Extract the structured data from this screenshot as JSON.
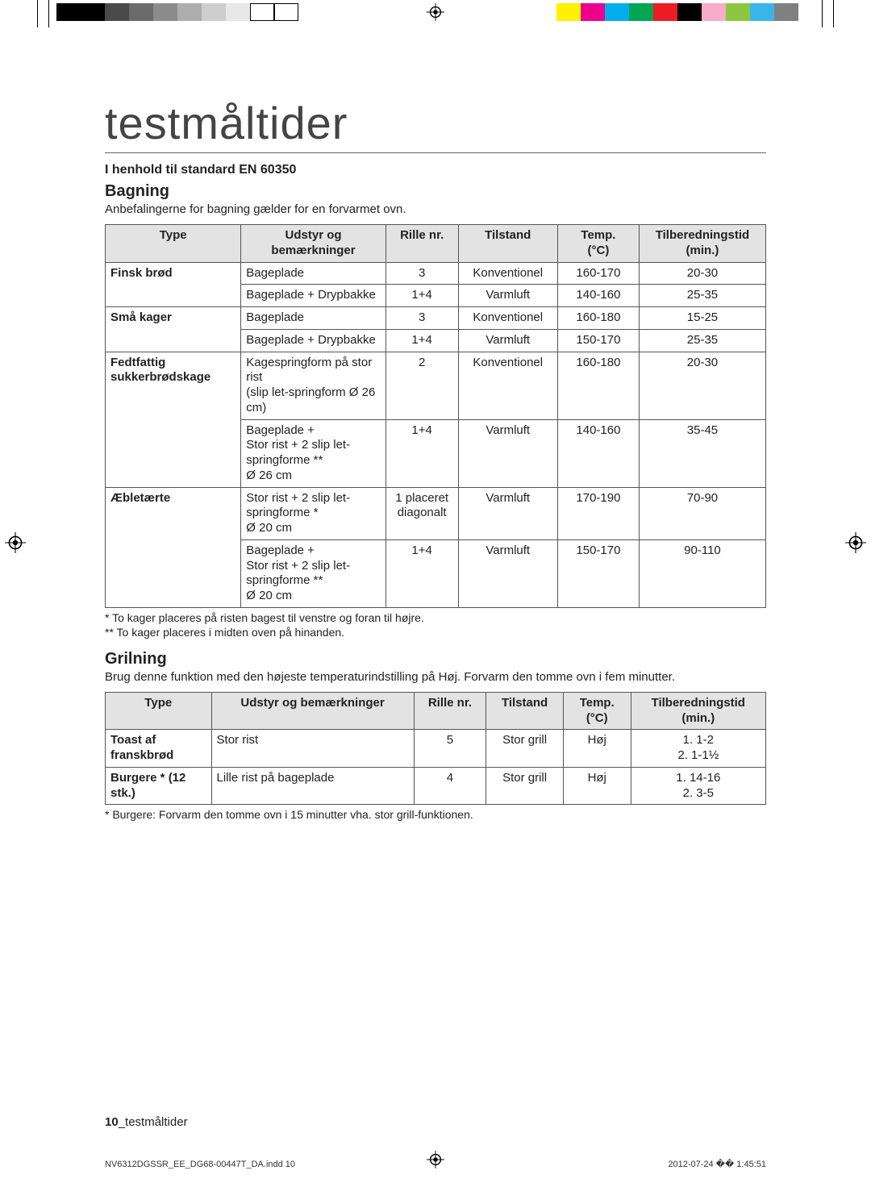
{
  "title": "testmåltider",
  "standard": "I henhold til standard EN 60350",
  "section1": {
    "heading": "Bagning",
    "lead": "Anbefalingerne for bagning gælder for en forvarmet ovn.",
    "headers": [
      "Type",
      "Udstyr og bemærkninger",
      "Rille nr.",
      "Tilstand",
      "Temp. (°C)",
      "Tilberedningstid (min.)"
    ],
    "rows": [
      {
        "type": "Finsk brød",
        "equip": "Bageplade",
        "shelf": "3",
        "mode": "Konventionel",
        "temp": "160-170",
        "time": "20-30",
        "typerowspan": 2
      },
      {
        "type": "",
        "equip": "Bageplade + Drypbakke",
        "shelf": "1+4",
        "mode": "Varmluft",
        "temp": "140-160",
        "time": "25-35"
      },
      {
        "type": "Små kager",
        "equip": "Bageplade",
        "shelf": "3",
        "mode": "Konventionel",
        "temp": "160-180",
        "time": "15-25",
        "typerowspan": 2
      },
      {
        "type": "",
        "equip": "Bageplade + Drypbakke",
        "shelf": "1+4",
        "mode": "Varmluft",
        "temp": "150-170",
        "time": "25-35"
      },
      {
        "type": "Fedtfattig sukkerbrødskage",
        "equip": "Kagespringform på stor rist\n(slip let-springform Ø 26 cm)",
        "shelf": "2",
        "mode": "Konventionel",
        "temp": "160-180",
        "time": "20-30",
        "typerowspan": 2
      },
      {
        "type": "",
        "equip": "Bageplade +\nStor rist + 2 slip let-springforme **\nØ 26 cm",
        "shelf": "1+4",
        "mode": "Varmluft",
        "temp": "140-160",
        "time": "35-45"
      },
      {
        "type": "Æbletærte",
        "equip": "Stor rist + 2 slip let-springforme *\nØ 20 cm",
        "shelf": "1 placeret diagonalt",
        "mode": "Varmluft",
        "temp": "170-190",
        "time": "70-90",
        "typerowspan": 2
      },
      {
        "type": "",
        "equip": "Bageplade +\nStor rist + 2 slip let-springforme **\nØ 20 cm",
        "shelf": "1+4",
        "mode": "Varmluft",
        "temp": "150-170",
        "time": "90-110"
      }
    ],
    "note1": "* To kager placeres på risten bagest til venstre og foran til højre.",
    "note2": "** To kager placeres i midten oven på hinanden."
  },
  "section2": {
    "heading": "Grilning",
    "lead": "Brug denne funktion med den højeste temperaturindstilling på Høj. Forvarm den tomme ovn i fem minutter.",
    "headers": [
      "Type",
      "Udstyr og bemærkninger",
      "Rille nr.",
      "Tilstand",
      "Temp. (°C)",
      "Tilberedningstid (min.)"
    ],
    "rows": [
      {
        "type": "Toast af franskbrød",
        "equip": "Stor rist",
        "shelf": "5",
        "mode": "Stor grill",
        "temp": "Høj",
        "time": "1. 1-2\n2. 1-1½"
      },
      {
        "type": "Burgere * (12 stk.)",
        "equip": "Lille rist på bageplade",
        "shelf": "4",
        "mode": "Stor grill",
        "temp": "Høj",
        "time": "1. 14-16\n2. 3-5"
      }
    ],
    "note": "* Burgere: Forvarm den tomme ovn i 15 minutter vha. stor grill-funktionen."
  },
  "footer": {
    "pagenum": "10",
    "section": "_testmåltider"
  },
  "print": {
    "file": "NV6312DGSSR_EE_DG68-00447T_DA.indd   10",
    "stamp": "2012-07-24   �� 1:45:51"
  },
  "reg_colors_left": [
    "#000000",
    "#000000",
    "#4a4a4a",
    "#6b6b6b",
    "#8c8c8c",
    "#adadad",
    "#cecece",
    "#e8e8e8",
    "#ffffff",
    "#ffffff"
  ],
  "reg_colors_right": [
    "#fff200",
    "#ec008c",
    "#00aeef",
    "#00a651",
    "#ed1c24",
    "#000000",
    "#f7adc9",
    "#8dc63f",
    "#39b5e7",
    "#808080"
  ]
}
